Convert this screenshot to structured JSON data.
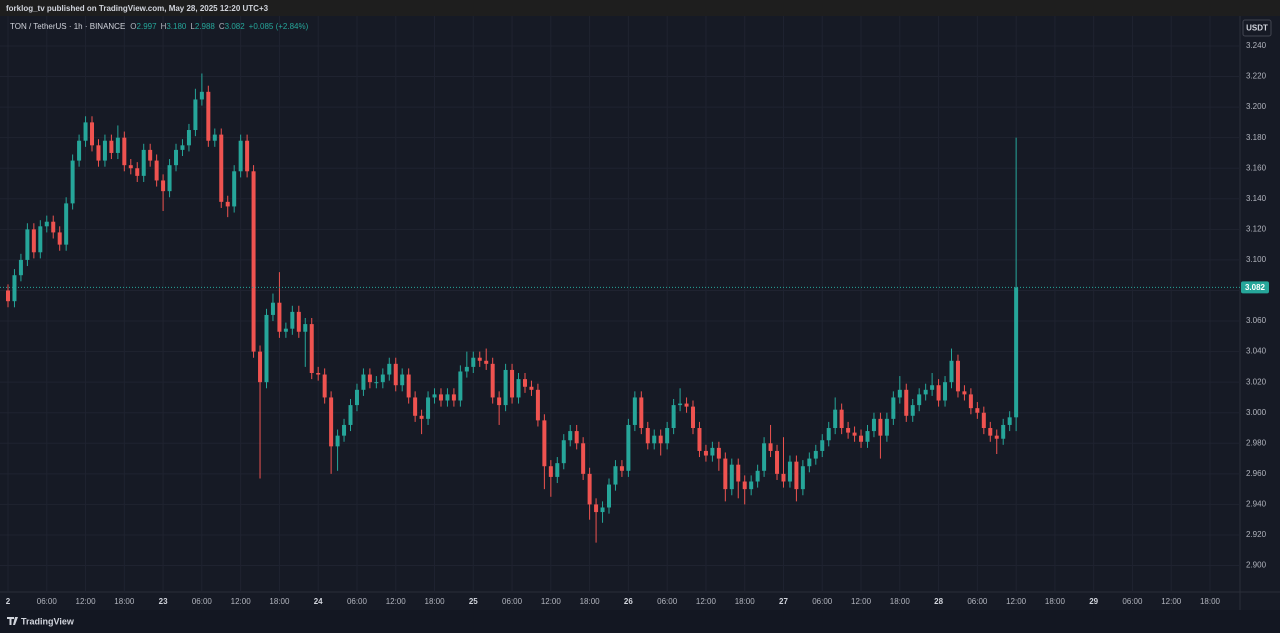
{
  "header": {
    "published": "forklog_tv published on TradingView.com, May 28, 2025 12:20 UTC+3"
  },
  "footer": {
    "brand": "TradingView"
  },
  "chart_data": {
    "type": "candlestick",
    "symbol": "TON / TetherUS · 1h · BINANCE",
    "legend": [
      {
        "label": "O",
        "value": "2.997"
      },
      {
        "label": "H",
        "value": "3.180"
      },
      {
        "label": "L",
        "value": "2.988"
      },
      {
        "label": "C",
        "value": "3.082"
      }
    ],
    "change": "+0.085 (+2.84%)",
    "currency": "USDT",
    "up_color": "#26a69a",
    "down_color": "#ef5350",
    "grid": true,
    "last_price_line": true,
    "categories": [
      "2",
      null,
      null,
      null,
      null,
      null,
      "06:00",
      null,
      null,
      null,
      null,
      null,
      "12:00",
      null,
      null,
      null,
      null,
      null,
      "18:00",
      null,
      null,
      null,
      null,
      null,
      "23",
      null,
      null,
      null,
      null,
      null,
      "06:00",
      null,
      null,
      null,
      null,
      null,
      "12:00",
      null,
      null,
      null,
      null,
      null,
      "18:00",
      null,
      null,
      null,
      null,
      null,
      "24",
      null,
      null,
      null,
      null,
      null,
      "06:00",
      null,
      null,
      null,
      null,
      null,
      "12:00",
      null,
      null,
      null,
      null,
      null,
      "18:00",
      null,
      null,
      null,
      null,
      null,
      "25",
      null,
      null,
      null,
      null,
      null,
      "06:00",
      null,
      null,
      null,
      null,
      null,
      "12:00",
      null,
      null,
      null,
      null,
      null,
      "18:00",
      null,
      null,
      null,
      null,
      null,
      "26",
      null,
      null,
      null,
      null,
      null,
      "06:00",
      null,
      null,
      null,
      null,
      null,
      "12:00",
      null,
      null,
      null,
      null,
      null,
      "18:00",
      null,
      null,
      null,
      null,
      null,
      "27",
      null,
      null,
      null,
      null,
      null,
      "06:00",
      null,
      null,
      null,
      null,
      null,
      "12:00",
      null,
      null,
      null,
      null,
      null,
      "18:00",
      null,
      null,
      null,
      null,
      null,
      "28",
      null,
      null,
      null,
      null,
      null,
      "06:00",
      null,
      null,
      null,
      null,
      null,
      "12:00",
      null,
      null,
      null,
      null,
      null,
      "18:00",
      null,
      null,
      null,
      null,
      null,
      "29",
      null,
      null,
      null,
      null,
      null,
      "06:00",
      null,
      null,
      null,
      null,
      null,
      "12:00",
      null,
      null,
      null,
      null,
      null,
      "18:00"
    ],
    "open": [
      3.08,
      3.073,
      3.09,
      3.1,
      3.12,
      3.105,
      3.122,
      3.125,
      3.118,
      3.11,
      3.137,
      3.165,
      3.178,
      3.19,
      3.175,
      3.165,
      3.178,
      3.17,
      3.18,
      3.162,
      3.16,
      3.155,
      3.172,
      3.165,
      3.152,
      3.145,
      3.162,
      3.172,
      3.175,
      3.185,
      3.205,
      3.21,
      3.178,
      3.182,
      3.138,
      3.135,
      3.158,
      3.178,
      3.158,
      3.04,
      3.02,
      3.064,
      3.072,
      3.053,
      3.055,
      3.066,
      3.053,
      3.058,
      3.026,
      3.025,
      3.01,
      2.978,
      2.985,
      2.992,
      3.005,
      3.015,
      3.025,
      3.02,
      3.02,
      3.025,
      3.032,
      3.018,
      3.025,
      3.01,
      2.998,
      2.996,
      3.01,
      3.012,
      3.008,
      3.012,
      3.008,
      3.027,
      3.03,
      3.036,
      3.034,
      3.032,
      3.01,
      3.005,
      3.028,
      3.01,
      3.022,
      3.017,
      3.015,
      2.995,
      2.965,
      2.958,
      2.967,
      2.982,
      2.988,
      2.98,
      2.96,
      2.94,
      2.935,
      2.938,
      2.953,
      2.965,
      2.962,
      2.992,
      3.01,
      2.99,
      2.98,
      2.985,
      2.98,
      2.99,
      3.005,
      3.006,
      3.004,
      2.99,
      2.975,
      2.972,
      2.977,
      2.97,
      2.95,
      2.966,
      2.955,
      2.95,
      2.955,
      2.962,
      2.98,
      2.975,
      2.96,
      2.955,
      2.968,
      2.95,
      2.965,
      2.97,
      2.975,
      2.982,
      2.99,
      3.002,
      2.99,
      2.987,
      2.985,
      2.981,
      2.988,
      2.996,
      2.985,
      2.996,
      3.01,
      3.015,
      2.998,
      3.005,
      3.012,
      3.015,
      3.018,
      3.008,
      3.02,
      3.034,
      3.014,
      3.012,
      3.003,
      3.0,
      2.99,
      2.985,
      2.983,
      2.992,
      2.997,
      null,
      null,
      null,
      null,
      null,
      null,
      null,
      null,
      null,
      null,
      null,
      null,
      null,
      null,
      null,
      null,
      null,
      null,
      null,
      null,
      null,
      null,
      null,
      null,
      null,
      null,
      null,
      null,
      null,
      null
    ],
    "high": [
      3.084,
      3.094,
      3.104,
      3.124,
      3.124,
      3.126,
      3.129,
      3.129,
      3.122,
      3.141,
      3.169,
      3.182,
      3.194,
      3.194,
      3.179,
      3.182,
      3.182,
      3.188,
      3.184,
      3.166,
      3.164,
      3.176,
      3.176,
      3.169,
      3.156,
      3.166,
      3.176,
      3.179,
      3.189,
      3.212,
      3.222,
      3.214,
      3.186,
      3.186,
      3.142,
      3.162,
      3.182,
      3.182,
      3.162,
      3.044,
      3.068,
      3.078,
      3.092,
      3.059,
      3.07,
      3.07,
      3.062,
      3.062,
      3.03,
      3.029,
      3.014,
      2.989,
      2.996,
      3.009,
      3.019,
      3.029,
      3.029,
      3.024,
      3.029,
      3.036,
      3.036,
      3.029,
      3.029,
      3.014,
      3.002,
      3.014,
      3.016,
      3.016,
      3.016,
      3.016,
      3.031,
      3.04,
      3.04,
      3.04,
      3.042,
      3.036,
      3.014,
      3.032,
      3.032,
      3.026,
      3.026,
      3.021,
      3.019,
      2.999,
      2.969,
      2.971,
      2.986,
      2.992,
      2.992,
      2.984,
      2.964,
      2.944,
      2.942,
      2.957,
      2.969,
      2.969,
      2.996,
      3.014,
      3.014,
      2.994,
      2.989,
      2.989,
      2.994,
      3.009,
      3.016,
      3.01,
      3.008,
      2.994,
      2.979,
      2.981,
      2.981,
      2.974,
      2.97,
      2.97,
      2.959,
      2.959,
      2.966,
      2.984,
      2.992,
      2.979,
      2.984,
      2.972,
      2.972,
      2.969,
      2.974,
      2.979,
      2.986,
      2.994,
      3.01,
      3.006,
      2.994,
      2.991,
      2.989,
      2.992,
      3.0,
      3.0,
      3.0,
      3.014,
      3.024,
      3.019,
      3.009,
      3.016,
      3.019,
      3.026,
      3.022,
      3.024,
      3.042,
      3.038,
      3.018,
      3.016,
      3.007,
      3.004,
      2.994,
      2.989,
      2.996,
      3.001,
      3.18,
      null,
      null,
      null,
      null,
      null,
      null,
      null,
      null,
      null,
      null,
      null,
      null,
      null,
      null,
      null,
      null,
      null,
      null,
      null,
      null,
      null,
      null,
      null,
      null,
      null,
      null,
      null,
      null,
      null,
      null
    ],
    "low": [
      3.069,
      3.069,
      3.086,
      3.096,
      3.101,
      3.101,
      3.118,
      3.114,
      3.106,
      3.106,
      3.133,
      3.161,
      3.174,
      3.171,
      3.161,
      3.161,
      3.166,
      3.166,
      3.158,
      3.156,
      3.151,
      3.151,
      3.161,
      3.148,
      3.132,
      3.141,
      3.158,
      3.168,
      3.171,
      3.181,
      3.201,
      3.174,
      3.174,
      3.134,
      3.128,
      3.131,
      3.154,
      3.154,
      3.036,
      2.957,
      3.016,
      3.06,
      3.049,
      3.049,
      3.051,
      3.049,
      3.03,
      3.022,
      3.021,
      3.006,
      2.96,
      2.962,
      2.981,
      2.988,
      3.001,
      3.011,
      3.016,
      3.016,
      3.016,
      3.021,
      3.014,
      3.014,
      3.006,
      2.994,
      2.986,
      2.992,
      3.006,
      3.004,
      3.004,
      3.004,
      3.004,
      3.023,
      3.026,
      3.03,
      3.028,
      3.006,
      2.992,
      3.001,
      3.006,
      3.006,
      3.013,
      3.011,
      2.991,
      2.95,
      2.945,
      2.954,
      2.963,
      2.978,
      2.976,
      2.956,
      2.93,
      2.915,
      2.928,
      2.934,
      2.949,
      2.958,
      2.958,
      2.988,
      2.986,
      2.976,
      2.976,
      2.972,
      2.976,
      2.986,
      3.001,
      3.0,
      2.986,
      2.971,
      2.968,
      2.968,
      2.962,
      2.942,
      2.946,
      2.944,
      2.94,
      2.946,
      2.951,
      2.958,
      2.971,
      2.956,
      2.951,
      2.951,
      2.942,
      2.946,
      2.961,
      2.966,
      2.971,
      2.978,
      2.986,
      2.986,
      2.983,
      2.981,
      2.977,
      2.977,
      2.984,
      2.97,
      2.981,
      2.992,
      3.006,
      2.994,
      2.994,
      3.001,
      3.008,
      3.011,
      3.004,
      3.004,
      3.016,
      3.01,
      3.008,
      2.999,
      2.996,
      2.986,
      2.981,
      2.973,
      2.979,
      2.988,
      2.988,
      null,
      null,
      null,
      null,
      null,
      null,
      null,
      null,
      null,
      null,
      null,
      null,
      null,
      null,
      null,
      null,
      null,
      null,
      null,
      null,
      null,
      null,
      null,
      null,
      null,
      null,
      null,
      null,
      null,
      null
    ],
    "close": [
      3.073,
      3.09,
      3.1,
      3.12,
      3.105,
      3.122,
      3.125,
      3.118,
      3.11,
      3.137,
      3.165,
      3.178,
      3.19,
      3.175,
      3.165,
      3.178,
      3.17,
      3.18,
      3.162,
      3.16,
      3.155,
      3.172,
      3.165,
      3.152,
      3.145,
      3.162,
      3.172,
      3.175,
      3.185,
      3.205,
      3.21,
      3.178,
      3.182,
      3.138,
      3.135,
      3.158,
      3.178,
      3.158,
      3.04,
      3.02,
      3.064,
      3.072,
      3.053,
      3.055,
      3.066,
      3.053,
      3.058,
      3.026,
      3.025,
      3.01,
      2.978,
      2.985,
      2.992,
      3.005,
      3.015,
      3.025,
      3.02,
      3.02,
      3.025,
      3.032,
      3.018,
      3.025,
      3.01,
      2.998,
      2.996,
      3.01,
      3.012,
      3.008,
      3.012,
      3.008,
      3.027,
      3.03,
      3.036,
      3.034,
      3.032,
      3.01,
      3.005,
      3.028,
      3.01,
      3.022,
      3.017,
      3.015,
      2.995,
      2.965,
      2.958,
      2.967,
      2.982,
      2.988,
      2.98,
      2.96,
      2.94,
      2.935,
      2.938,
      2.953,
      2.965,
      2.962,
      2.992,
      3.01,
      2.99,
      2.98,
      2.985,
      2.98,
      2.99,
      3.005,
      3.006,
      3.004,
      2.99,
      2.975,
      2.972,
      2.977,
      2.97,
      2.95,
      2.966,
      2.955,
      2.95,
      2.955,
      2.962,
      2.98,
      2.975,
      2.96,
      2.955,
      2.968,
      2.95,
      2.965,
      2.97,
      2.975,
      2.982,
      2.99,
      3.002,
      2.99,
      2.987,
      2.985,
      2.981,
      2.988,
      2.996,
      2.985,
      2.996,
      3.01,
      3.015,
      2.998,
      3.005,
      3.012,
      3.015,
      3.018,
      3.008,
      3.02,
      3.034,
      3.014,
      3.012,
      3.003,
      3.0,
      2.99,
      2.985,
      2.983,
      2.992,
      2.997,
      3.082,
      null,
      null,
      null,
      null,
      null,
      null,
      null,
      null,
      null,
      null,
      null,
      null,
      null,
      null,
      null,
      null,
      null,
      null,
      null,
      null,
      null,
      null,
      null,
      null,
      null,
      null,
      null,
      null,
      null,
      null
    ],
    "ylim": [
      2.884,
      3.257
    ],
    "yticks": [
      {
        "value": 2.9,
        "label": "2.900"
      },
      {
        "value": 2.92,
        "label": "2.920"
      },
      {
        "value": 2.94,
        "label": "2.940"
      },
      {
        "value": 2.96,
        "label": "2.960"
      },
      {
        "value": 2.98,
        "label": "2.980"
      },
      {
        "value": 3.0,
        "label": "3.000"
      },
      {
        "value": 3.02,
        "label": "3.020"
      },
      {
        "value": 3.04,
        "label": "3.040"
      },
      {
        "value": 3.06,
        "label": "3.060"
      },
      {
        "value": 3.08,
        "label": "3.080"
      },
      {
        "value": 3.1,
        "label": "3.100"
      },
      {
        "value": 3.12,
        "label": "3.120"
      },
      {
        "value": 3.14,
        "label": "3.140"
      },
      {
        "value": 3.16,
        "label": "3.160"
      },
      {
        "value": 3.18,
        "label": "3.180"
      },
      {
        "value": 3.2,
        "label": "3.200"
      },
      {
        "value": 3.22,
        "label": "3.220"
      },
      {
        "value": 3.24,
        "label": "3.240"
      }
    ]
  }
}
